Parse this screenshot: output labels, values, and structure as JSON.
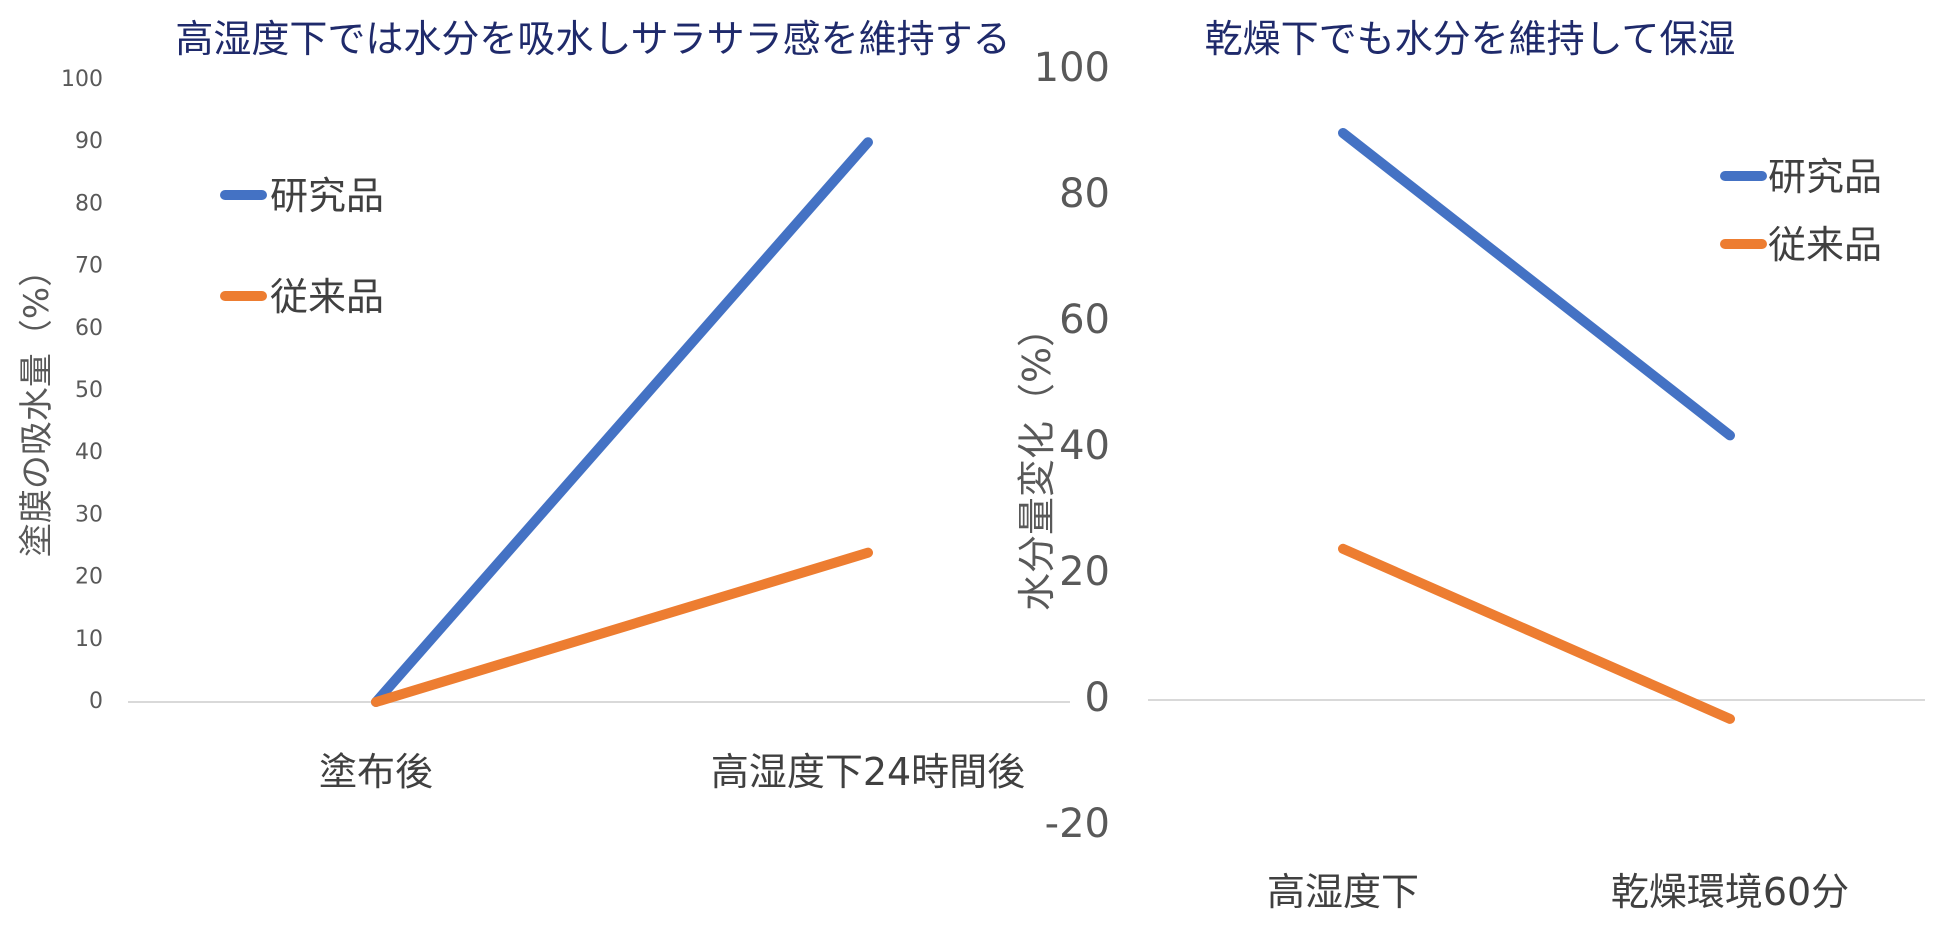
{
  "chart_data": [
    {
      "type": "line",
      "title": "高湿度下では水分を吸水しサラサラ感を維持する",
      "ylabel": "塗膜の吸水量（%）",
      "xlabel": "",
      "categories": [
        "塗布後",
        "高湿度下24時間後"
      ],
      "ylim": [
        0,
        100
      ],
      "yticks": [
        0,
        10,
        20,
        30,
        40,
        50,
        60,
        70,
        80,
        90,
        100
      ],
      "grid": false,
      "legend": "top-left",
      "series": [
        {
          "name": "研究品",
          "values": [
            0,
            90
          ],
          "color": "#4472c4"
        },
        {
          "name": "従来品",
          "values": [
            0,
            24
          ],
          "color": "#ed7d31"
        }
      ]
    },
    {
      "type": "line",
      "title": "乾燥下でも水分を維持して保湿",
      "ylabel": "水分量変化（%）",
      "xlabel": "",
      "categories": [
        "高湿度下",
        "乾燥環境60分"
      ],
      "ylim": [
        -20,
        100
      ],
      "yticks": [
        -20,
        0,
        20,
        40,
        60,
        80,
        100
      ],
      "grid": false,
      "legend": "top-right",
      "series": [
        {
          "name": "研究品",
          "values": [
            90,
            42
          ],
          "color": "#4472c4"
        },
        {
          "name": "従来品",
          "values": [
            24,
            -3
          ],
          "color": "#ed7d31"
        }
      ]
    }
  ]
}
